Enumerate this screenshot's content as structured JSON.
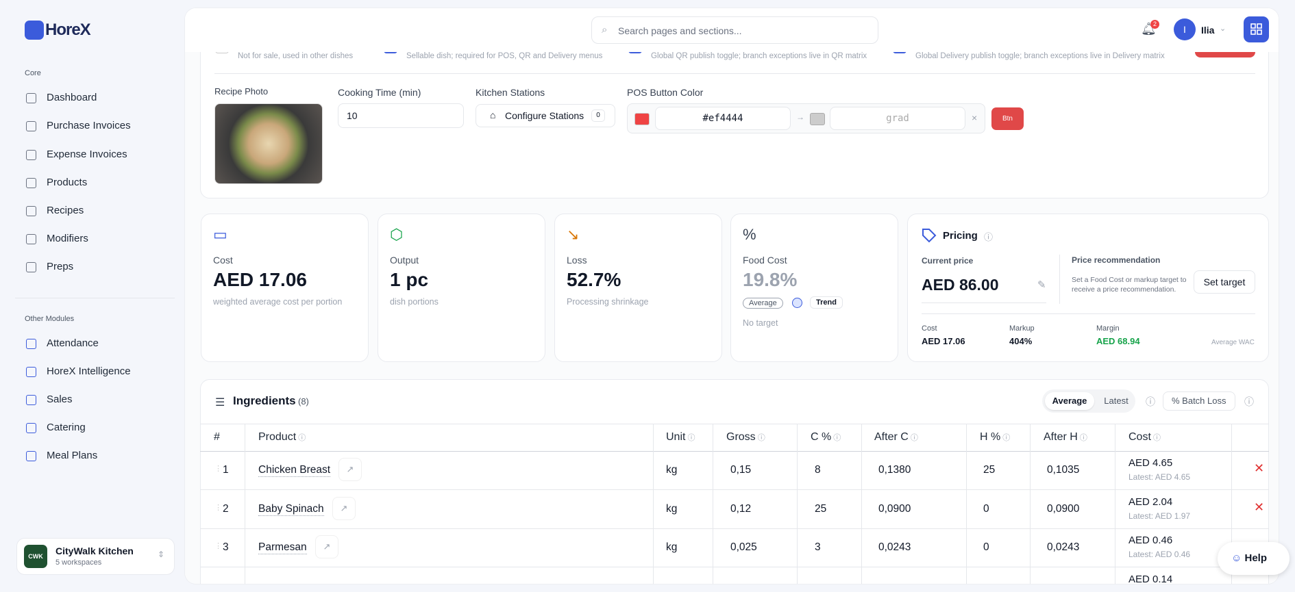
{
  "sidebar": {
    "brand": "HoreX",
    "sections": [
      {
        "label": "Core",
        "items": [
          "Dashboard",
          "Purchase Invoices",
          "Expense Invoices",
          "Products",
          "Recipes",
          "Modifiers",
          "Preps"
        ]
      },
      {
        "label": "Other Modules",
        "items": [
          "Attendance",
          "HoreX Intelligence",
          "Sales",
          "Catering",
          "Meal Plans"
        ]
      }
    ],
    "workspace": {
      "badge": "CWK",
      "name": "CityWalk Kitchen",
      "subtitle": "5 workspaces"
    }
  },
  "header": {
    "search_placeholder": "Search pages and sections...",
    "notifications": "2",
    "avatar": "I",
    "user": "Ilia"
  },
  "recipe": {
    "flags": [
      "Not for sale, used in other dishes",
      "Sellable dish; required for POS, QR and Delivery menus",
      "Global QR publish toggle; branch exceptions live in QR matrix",
      "Global Delivery publish toggle; branch exceptions live in Delivery matrix"
    ],
    "photo_label": "Recipe Photo",
    "cooking_time_label": "Cooking Time (min)",
    "cooking_time": "10",
    "kitchen_label": "Kitchen Stations",
    "configure": "Configure Stations",
    "station_count": "0",
    "color_label": "POS Button Color",
    "color": "#ef4444",
    "gradient_placeholder": "grad",
    "button_preview": "Btn"
  },
  "stats": [
    {
      "label": "Cost",
      "value": "AED 17.06",
      "note": "weighted average cost per portion"
    },
    {
      "label": "Output",
      "value": "1 pc",
      "note": "dish portions"
    },
    {
      "label": "Loss",
      "value": "52.7%",
      "note": "Processing shrinkage"
    },
    {
      "label": "Food Cost",
      "value": "19.8%",
      "badge": "Average",
      "trend": "Trend",
      "note": "No target"
    }
  ],
  "pricing": {
    "title": "Pricing",
    "current_label": "Current price",
    "current": "AED 86.00",
    "rec_title": "Price recommendation",
    "rec_text": "Set a Food Cost or markup target to receive a price recommendation.",
    "set_target": "Set target",
    "metrics": [
      {
        "label": "Cost",
        "value": "AED 17.06"
      },
      {
        "label": "Markup",
        "value": "404%"
      },
      {
        "label": "Margin",
        "value": "AED 68.94"
      }
    ],
    "basis": "Average WAC"
  },
  "ingredients": {
    "title": "Ingredients",
    "count": "(8)",
    "modes": [
      "Average",
      "Latest"
    ],
    "batch_loss": "Batch Loss",
    "columns": [
      "#",
      "Product",
      "Unit",
      "Gross",
      "C %",
      "After C",
      "H %",
      "After H",
      "Cost"
    ],
    "rows": [
      [
        "1",
        "Chicken Breast",
        "kg",
        "0,15",
        "8",
        "0,1380",
        "25",
        "0,1035",
        "AED 4.65",
        "Latest: AED 4.65"
      ],
      [
        "2",
        "Baby Spinach",
        "kg",
        "0,12",
        "25",
        "0,0900",
        "0",
        "0,0900",
        "AED 2.04",
        "Latest: AED 1.97"
      ],
      [
        "3",
        "Parmesan",
        "kg",
        "0,025",
        "3",
        "0,0243",
        "0",
        "0,0243",
        "AED 0.46",
        "Latest: AED 0.46"
      ],
      [
        null,
        null,
        null,
        null,
        null,
        null,
        null,
        null,
        "AED 0.14",
        null
      ]
    ]
  },
  "help": "Help"
}
